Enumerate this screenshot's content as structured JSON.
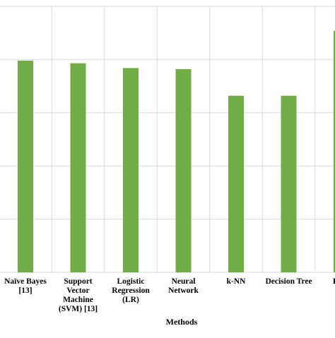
{
  "chart_data": {
    "type": "bar",
    "categories": [
      "Naïve Bayes [13]",
      "Support Vector Machine (SVM) [13]",
      "Logistic Regression (LR)",
      "Neural Network",
      "k-NN",
      "Decision Tree",
      "HRF"
    ],
    "category_label_lines": [
      [
        "Naïve Bayes",
        "[13]"
      ],
      [
        "Support",
        "Vector",
        "Machine",
        "(SVM) [13]"
      ],
      [
        "Logistic",
        "Regression",
        "(LR)"
      ],
      [
        "Neural",
        "Network"
      ],
      [
        "k-NN"
      ],
      [
        "Decision Tree"
      ],
      [
        "HRF"
      ]
    ],
    "values": [
      0.796,
      0.786,
      0.768,
      0.764,
      0.664,
      0.664,
      0.908
    ],
    "ylim": [
      0,
      1
    ],
    "y_gridlines": [
      0,
      0.2,
      0.4,
      0.6,
      0.8,
      1.0
    ],
    "xlabel": "Methods",
    "ylabel": "",
    "title": "",
    "grid": true,
    "legend": "none",
    "bar_color": "#70ad47",
    "grid_color": "#d9d9d9"
  }
}
